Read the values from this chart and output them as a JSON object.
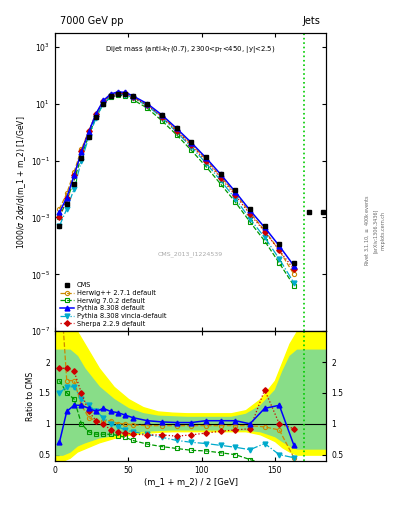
{
  "title_left": "7000 GeV pp",
  "title_right": "Jets",
  "ylabel_main": "1000/σ 2dσ/d(m_1 + m_2) [1/GeV]",
  "ylabel_ratio": "Ratio to CMS",
  "xlabel": "(m_1 + m_2) / 2 [GeV]",
  "cms_label": "CMS_2013_I1224539",
  "xlim": [
    0,
    185
  ],
  "ylim_main": [
    1e-07,
    3000.0
  ],
  "ylim_ratio": [
    0.4,
    2.5
  ],
  "vline_x": 170,
  "vline_color": "#00cc00",
  "cms_x": [
    3,
    8,
    13,
    18,
    23,
    28,
    33,
    38,
    43,
    48,
    53,
    63,
    73,
    83,
    93,
    103,
    113,
    123,
    133,
    143,
    153,
    163,
    173,
    183
  ],
  "cms_y": [
    0.0005,
    0.003,
    0.015,
    0.12,
    0.7,
    3.5,
    10,
    18,
    22,
    22,
    18,
    10,
    4,
    1.4,
    0.45,
    0.13,
    0.035,
    0.009,
    0.002,
    0.0005,
    0.00012,
    2.5e-05,
    0.0015,
    0.0015
  ],
  "herwig271_x": [
    3,
    8,
    13,
    18,
    23,
    28,
    33,
    38,
    43,
    48,
    53,
    63,
    73,
    83,
    93,
    103,
    113,
    123,
    133,
    143,
    153,
    163
  ],
  "herwig271_y": [
    0.002,
    0.007,
    0.04,
    0.25,
    1.1,
    4.5,
    12,
    20,
    24,
    22,
    17,
    9,
    3.5,
    1.2,
    0.38,
    0.11,
    0.028,
    0.007,
    0.0015,
    0.00035,
    7e-05,
    1e-05
  ],
  "herwig271_color": "#cc8800",
  "herwig271_ratio": [
    3.5,
    1.7,
    1.7,
    1.3,
    1.1,
    1.05,
    1.05,
    1.05,
    1.0,
    1.0,
    0.98,
    0.97,
    0.97,
    0.97,
    0.97,
    0.97,
    0.97,
    0.97,
    0.97,
    0.95,
    0.9,
    0.45
  ],
  "herwig702_x": [
    3,
    8,
    13,
    18,
    23,
    28,
    33,
    38,
    43,
    48,
    53,
    63,
    73,
    83,
    93,
    103,
    113,
    123,
    133,
    143,
    153,
    163
  ],
  "herwig702_y": [
    0.001,
    0.004,
    0.02,
    0.14,
    0.75,
    3.5,
    10,
    17,
    20,
    19,
    14,
    7,
    2.5,
    0.8,
    0.23,
    0.062,
    0.015,
    0.0035,
    0.0007,
    0.00015,
    2.5e-05,
    4e-06
  ],
  "herwig702_color": "#009900",
  "herwig702_ratio": [
    1.7,
    1.5,
    1.4,
    1.0,
    0.87,
    0.83,
    0.83,
    0.83,
    0.81,
    0.78,
    0.73,
    0.67,
    0.63,
    0.6,
    0.57,
    0.56,
    0.53,
    0.5,
    0.42,
    0.35,
    0.28,
    0.2
  ],
  "pythia8_x": [
    3,
    8,
    13,
    18,
    23,
    28,
    33,
    38,
    43,
    48,
    53,
    63,
    73,
    83,
    93,
    103,
    113,
    123,
    133,
    143,
    153,
    163
  ],
  "pythia8_y": [
    0.0015,
    0.005,
    0.03,
    0.2,
    1.0,
    4.5,
    13,
    22,
    26,
    25,
    19,
    10,
    4.0,
    1.35,
    0.43,
    0.125,
    0.033,
    0.008,
    0.0018,
    0.00045,
    0.0001,
    2e-05
  ],
  "pythia8_color": "#0000ff",
  "pythia8_ratio": [
    0.7,
    1.2,
    1.3,
    1.3,
    1.25,
    1.2,
    1.25,
    1.2,
    1.18,
    1.14,
    1.1,
    1.05,
    1.03,
    1.02,
    1.02,
    1.05,
    1.05,
    1.05,
    1.0,
    1.25,
    1.3,
    0.65
  ],
  "pythia8v_x": [
    3,
    8,
    13,
    18,
    23,
    28,
    33,
    38,
    43,
    48,
    53,
    63,
    73,
    83,
    93,
    103,
    113,
    123,
    133,
    143,
    153,
    163
  ],
  "pythia8v_y": [
    0.0005,
    0.002,
    0.01,
    0.1,
    0.65,
    3.2,
    10,
    18,
    22,
    21,
    16,
    8.5,
    3.2,
    1.0,
    0.3,
    0.082,
    0.02,
    0.0046,
    0.0009,
    0.0002,
    3.5e-05,
    5e-06
  ],
  "pythia8v_color": "#00aacc",
  "pythia8v_ratio": [
    1.5,
    1.6,
    1.6,
    1.4,
    1.3,
    1.2,
    1.1,
    1.0,
    0.95,
    0.9,
    0.87,
    0.83,
    0.78,
    0.73,
    0.7,
    0.68,
    0.65,
    0.62,
    0.58,
    0.68,
    0.5,
    0.45
  ],
  "sherpa_x": [
    3,
    8,
    13,
    18,
    23,
    28,
    33,
    38,
    43,
    48,
    53,
    63,
    73,
    83,
    93,
    103,
    113,
    123,
    133,
    143,
    153,
    163
  ],
  "sherpa_y": [
    0.001,
    0.005,
    0.03,
    0.22,
    1.1,
    4.5,
    12,
    20,
    24,
    23,
    17,
    9,
    3.5,
    1.1,
    0.34,
    0.097,
    0.025,
    0.006,
    0.0013,
    0.00032,
    7e-05,
    1.5e-05
  ],
  "sherpa_color": "#cc0000",
  "sherpa_ratio": [
    1.9,
    1.9,
    1.85,
    1.5,
    1.2,
    1.05,
    1.0,
    0.9,
    0.87,
    0.85,
    0.83,
    0.82,
    0.82,
    0.8,
    0.82,
    0.85,
    0.88,
    0.9,
    0.92,
    1.55,
    1.0,
    0.92
  ],
  "band_x": [
    0,
    5,
    10,
    15,
    20,
    30,
    40,
    50,
    60,
    70,
    80,
    90,
    100,
    110,
    120,
    130,
    140,
    150,
    155,
    160,
    165,
    185
  ],
  "band_yellow_low": [
    0.4,
    0.4,
    0.45,
    0.55,
    0.6,
    0.7,
    0.77,
    0.82,
    0.85,
    0.87,
    0.88,
    0.88,
    0.88,
    0.88,
    0.88,
    0.88,
    0.83,
    0.72,
    0.62,
    0.55,
    0.5,
    0.5
  ],
  "band_yellow_high": [
    2.5,
    2.5,
    2.5,
    2.5,
    2.3,
    1.9,
    1.6,
    1.4,
    1.27,
    1.2,
    1.18,
    1.17,
    1.17,
    1.17,
    1.17,
    1.22,
    1.4,
    1.7,
    2.0,
    2.3,
    2.5,
    2.5
  ],
  "band_green_low": [
    0.5,
    0.5,
    0.55,
    0.65,
    0.7,
    0.78,
    0.82,
    0.87,
    0.89,
    0.9,
    0.91,
    0.91,
    0.91,
    0.91,
    0.91,
    0.91,
    0.88,
    0.8,
    0.72,
    0.65,
    0.6,
    0.6
  ],
  "band_green_high": [
    2.2,
    2.2,
    2.2,
    2.1,
    1.9,
    1.6,
    1.4,
    1.25,
    1.17,
    1.13,
    1.12,
    1.11,
    1.11,
    1.11,
    1.11,
    1.16,
    1.3,
    1.55,
    1.85,
    2.1,
    2.2,
    2.2
  ]
}
